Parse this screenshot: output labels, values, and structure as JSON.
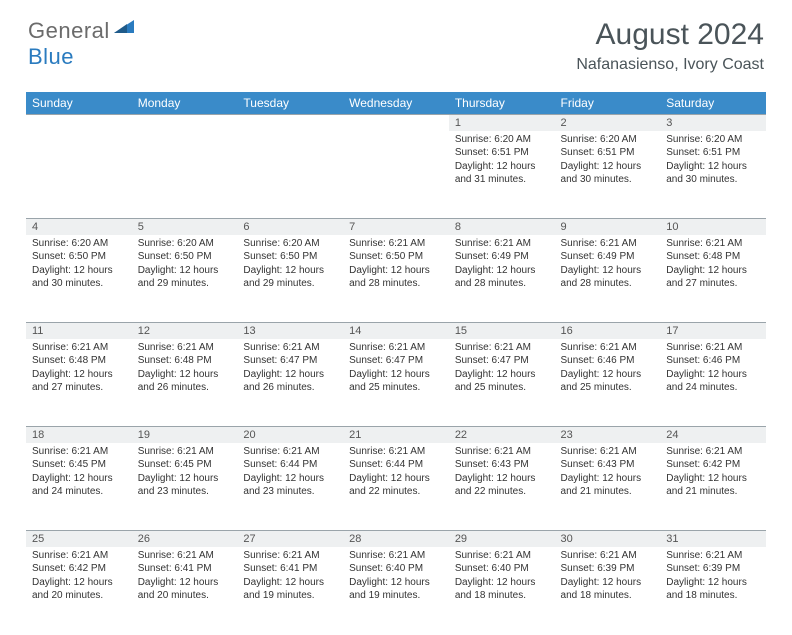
{
  "brand": {
    "word1": "General",
    "word2": "Blue",
    "word1_color": "#6b6b6b",
    "word2_color": "#2a7bbf"
  },
  "header": {
    "title": "August 2024",
    "location": "Nafanasienso, Ivory Coast"
  },
  "colors": {
    "header_bg": "#3a8bc9",
    "header_text": "#ffffff",
    "daynum_bg": "#eef0f1",
    "border": "#9aa4aa",
    "title_color": "#4a5459"
  },
  "day_labels": [
    "Sunday",
    "Monday",
    "Tuesday",
    "Wednesday",
    "Thursday",
    "Friday",
    "Saturday"
  ],
  "weeks": [
    [
      null,
      null,
      null,
      null,
      {
        "n": "1",
        "sr": "6:20 AM",
        "ss": "6:51 PM",
        "dl": "12 hours and 31 minutes."
      },
      {
        "n": "2",
        "sr": "6:20 AM",
        "ss": "6:51 PM",
        "dl": "12 hours and 30 minutes."
      },
      {
        "n": "3",
        "sr": "6:20 AM",
        "ss": "6:51 PM",
        "dl": "12 hours and 30 minutes."
      }
    ],
    [
      {
        "n": "4",
        "sr": "6:20 AM",
        "ss": "6:50 PM",
        "dl": "12 hours and 30 minutes."
      },
      {
        "n": "5",
        "sr": "6:20 AM",
        "ss": "6:50 PM",
        "dl": "12 hours and 29 minutes."
      },
      {
        "n": "6",
        "sr": "6:20 AM",
        "ss": "6:50 PM",
        "dl": "12 hours and 29 minutes."
      },
      {
        "n": "7",
        "sr": "6:21 AM",
        "ss": "6:50 PM",
        "dl": "12 hours and 28 minutes."
      },
      {
        "n": "8",
        "sr": "6:21 AM",
        "ss": "6:49 PM",
        "dl": "12 hours and 28 minutes."
      },
      {
        "n": "9",
        "sr": "6:21 AM",
        "ss": "6:49 PM",
        "dl": "12 hours and 28 minutes."
      },
      {
        "n": "10",
        "sr": "6:21 AM",
        "ss": "6:48 PM",
        "dl": "12 hours and 27 minutes."
      }
    ],
    [
      {
        "n": "11",
        "sr": "6:21 AM",
        "ss": "6:48 PM",
        "dl": "12 hours and 27 minutes."
      },
      {
        "n": "12",
        "sr": "6:21 AM",
        "ss": "6:48 PM",
        "dl": "12 hours and 26 minutes."
      },
      {
        "n": "13",
        "sr": "6:21 AM",
        "ss": "6:47 PM",
        "dl": "12 hours and 26 minutes."
      },
      {
        "n": "14",
        "sr": "6:21 AM",
        "ss": "6:47 PM",
        "dl": "12 hours and 25 minutes."
      },
      {
        "n": "15",
        "sr": "6:21 AM",
        "ss": "6:47 PM",
        "dl": "12 hours and 25 minutes."
      },
      {
        "n": "16",
        "sr": "6:21 AM",
        "ss": "6:46 PM",
        "dl": "12 hours and 25 minutes."
      },
      {
        "n": "17",
        "sr": "6:21 AM",
        "ss": "6:46 PM",
        "dl": "12 hours and 24 minutes."
      }
    ],
    [
      {
        "n": "18",
        "sr": "6:21 AM",
        "ss": "6:45 PM",
        "dl": "12 hours and 24 minutes."
      },
      {
        "n": "19",
        "sr": "6:21 AM",
        "ss": "6:45 PM",
        "dl": "12 hours and 23 minutes."
      },
      {
        "n": "20",
        "sr": "6:21 AM",
        "ss": "6:44 PM",
        "dl": "12 hours and 23 minutes."
      },
      {
        "n": "21",
        "sr": "6:21 AM",
        "ss": "6:44 PM",
        "dl": "12 hours and 22 minutes."
      },
      {
        "n": "22",
        "sr": "6:21 AM",
        "ss": "6:43 PM",
        "dl": "12 hours and 22 minutes."
      },
      {
        "n": "23",
        "sr": "6:21 AM",
        "ss": "6:43 PM",
        "dl": "12 hours and 21 minutes."
      },
      {
        "n": "24",
        "sr": "6:21 AM",
        "ss": "6:42 PM",
        "dl": "12 hours and 21 minutes."
      }
    ],
    [
      {
        "n": "25",
        "sr": "6:21 AM",
        "ss": "6:42 PM",
        "dl": "12 hours and 20 minutes."
      },
      {
        "n": "26",
        "sr": "6:21 AM",
        "ss": "6:41 PM",
        "dl": "12 hours and 20 minutes."
      },
      {
        "n": "27",
        "sr": "6:21 AM",
        "ss": "6:41 PM",
        "dl": "12 hours and 19 minutes."
      },
      {
        "n": "28",
        "sr": "6:21 AM",
        "ss": "6:40 PM",
        "dl": "12 hours and 19 minutes."
      },
      {
        "n": "29",
        "sr": "6:21 AM",
        "ss": "6:40 PM",
        "dl": "12 hours and 18 minutes."
      },
      {
        "n": "30",
        "sr": "6:21 AM",
        "ss": "6:39 PM",
        "dl": "12 hours and 18 minutes."
      },
      {
        "n": "31",
        "sr": "6:21 AM",
        "ss": "6:39 PM",
        "dl": "12 hours and 18 minutes."
      }
    ]
  ],
  "labels": {
    "sunrise": "Sunrise: ",
    "sunset": "Sunset: ",
    "daylight": "Daylight: "
  }
}
